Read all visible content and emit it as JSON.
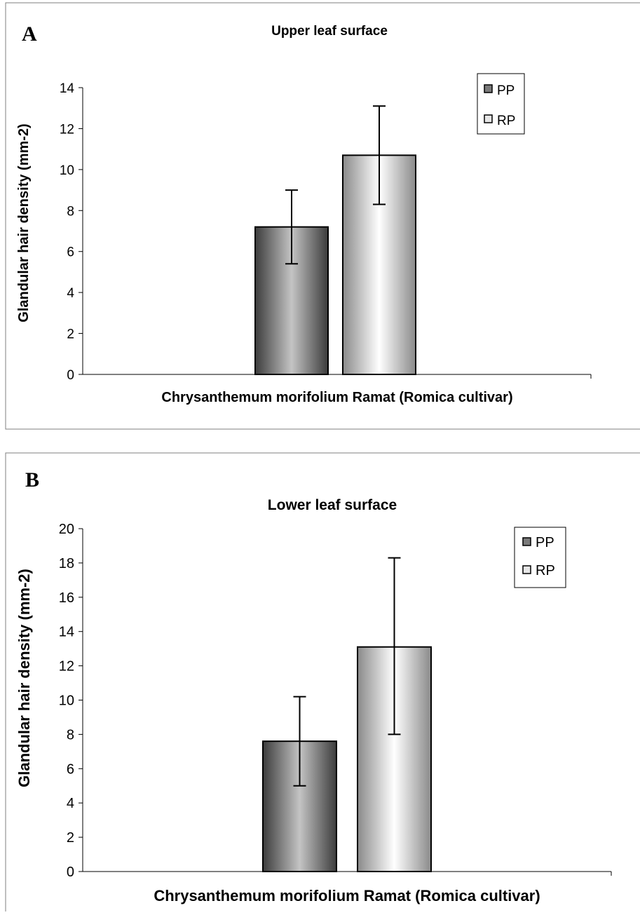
{
  "chart_data": [
    {
      "type": "bar",
      "panel_label": "A",
      "title": "Upper leaf surface",
      "xlabel": "Chrysanthemum morifolium Ramat (Romica cultivar)",
      "ylabel": "Glandular hair density (mm-2)",
      "ylim": [
        0,
        14
      ],
      "yticks": [
        "0",
        "2",
        "4",
        "6",
        "8",
        "10",
        "12",
        "14"
      ],
      "grid": false,
      "legend_position": "top-right",
      "categories": [
        ""
      ],
      "series": [
        {
          "name": "PP",
          "values": [
            7.2
          ],
          "error_low": [
            5.4
          ],
          "error_high": [
            9.0
          ],
          "color": "#6e6e6e"
        },
        {
          "name": "RP",
          "values": [
            10.7
          ],
          "error_low": [
            8.3
          ],
          "error_high": [
            13.1
          ],
          "color": "#dcdcdc"
        }
      ]
    },
    {
      "type": "bar",
      "panel_label": "B",
      "title": "Lower leaf surface",
      "xlabel": "Chrysanthemum morifolium Ramat (Romica cultivar)",
      "ylabel": "Glandular hair density (mm-2)",
      "ylim": [
        0,
        20
      ],
      "yticks": [
        "0",
        "2",
        "4",
        "6",
        "8",
        "10",
        "12",
        "14",
        "16",
        "18",
        "20"
      ],
      "grid": false,
      "legend_position": "top-right",
      "categories": [
        ""
      ],
      "series": [
        {
          "name": "PP",
          "values": [
            7.6
          ],
          "error_low": [
            5.0
          ],
          "error_high": [
            10.2
          ],
          "color": "#6e6e6e"
        },
        {
          "name": "RP",
          "values": [
            13.1
          ],
          "error_low": [
            8.0
          ],
          "error_high": [
            18.3
          ],
          "color": "#dcdcdc"
        }
      ]
    }
  ]
}
